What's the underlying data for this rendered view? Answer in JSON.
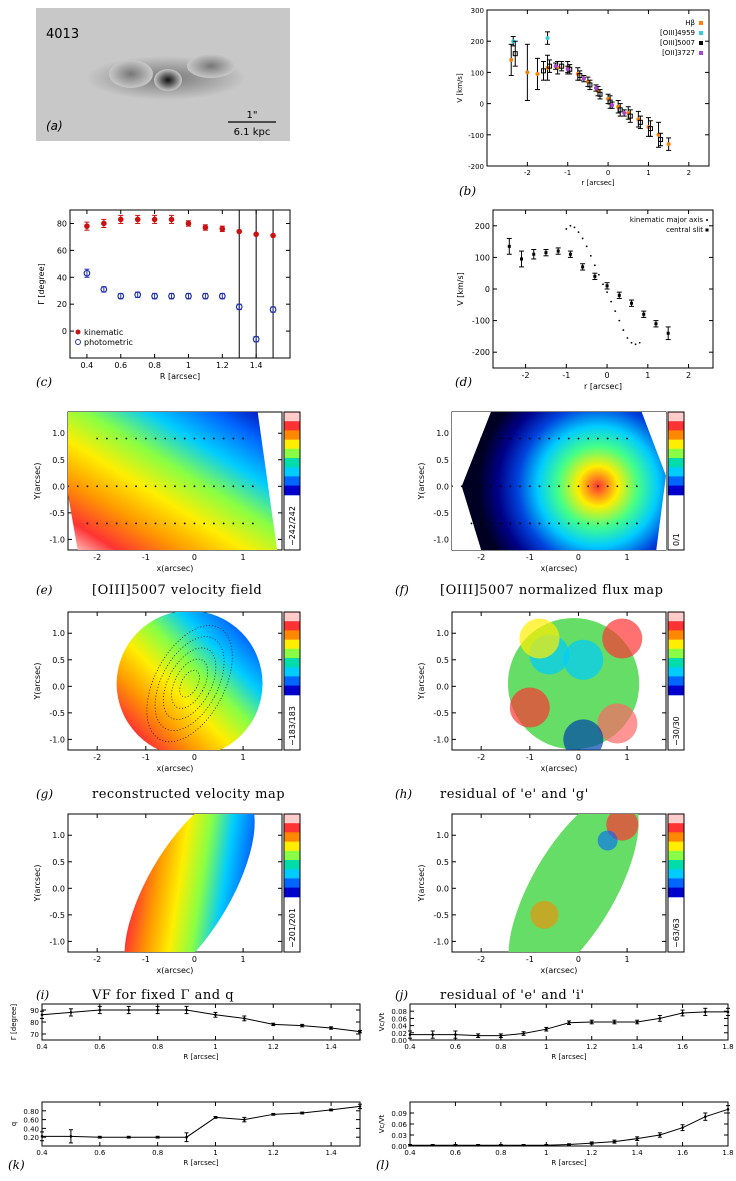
{
  "panel_letters": {
    "a": "(a)",
    "b": "(b)",
    "c": "(c)",
    "d": "(d)",
    "e": "(e)",
    "f": "(f)",
    "g": "(g)",
    "h": "(h)",
    "i": "(i)",
    "j": "(j)",
    "k": "(k)",
    "l": "(l)"
  },
  "panel_titles": {
    "e": "[OIII]5007 velocity field",
    "f": "[OIII]5007 normalized flux map",
    "g": "reconstructed velocity map",
    "h": "residual of 'e' and 'g'",
    "i": "VF for fixed Γ and q",
    "j": "residual of 'e' and 'i'"
  },
  "panel_a": {
    "id_label": "4013",
    "scale_top": "1\"",
    "scale_bottom": "6.1 kpc"
  },
  "map_axes": {
    "xlabel": "x(arcsec)",
    "ylabel": "Y(arcsec)"
  },
  "colorbar_labels": {
    "e": "−242/242",
    "f": "0/1",
    "g": "−183/183",
    "h": "−30/30",
    "i": "−201/201",
    "j": "−63/63"
  },
  "colors": {
    "red_kinematic": "#cc1111",
    "blue_photometric": "#2233aa"
  },
  "chart_data": [
    {
      "panel": "b",
      "type": "scatter",
      "xlabel": "r [arcsec]",
      "ylabel": "V [km/s]",
      "xlim": [
        -3,
        2.5
      ],
      "ylim": [
        -200,
        300
      ],
      "xticks": [
        -2,
        -1,
        0,
        1,
        2
      ],
      "yticks": [
        -200,
        -100,
        0,
        100,
        200,
        300
      ],
      "legend_position": "top-right",
      "series": [
        {
          "name": "Hβ",
          "color": "#ff7f00",
          "x": [
            -2.4,
            -2.0,
            -1.75,
            -1.5,
            -1.25,
            -1.0,
            -0.75,
            -0.5,
            -0.25,
            0.0,
            0.25,
            0.5,
            0.75,
            1.0,
            1.25,
            1.5
          ],
          "y": [
            140,
            100,
            95,
            115,
            115,
            115,
            95,
            70,
            40,
            15,
            -10,
            -30,
            -50,
            -75,
            -100,
            -130
          ],
          "err": [
            50,
            90,
            50,
            40,
            20,
            20,
            20,
            15,
            15,
            15,
            20,
            20,
            25,
            30,
            40,
            20
          ]
        },
        {
          "name": "[OIII]4959",
          "color": "#33ccdd",
          "x": [
            -2.35,
            -1.5
          ],
          "y": [
            200,
            210
          ],
          "err": [
            15,
            20
          ]
        },
        {
          "name": "[OIII]5007",
          "color": "#000000",
          "x": [
            -2.3,
            -1.6,
            -1.45,
            -1.15,
            -0.95,
            -0.7,
            -0.45,
            -0.2,
            0.05,
            0.3,
            0.55,
            0.8,
            1.05,
            1.3
          ],
          "y": [
            160,
            105,
            120,
            120,
            110,
            90,
            60,
            30,
            5,
            -20,
            -40,
            -60,
            -80,
            -115
          ],
          "err": [
            40,
            30,
            20,
            15,
            15,
            15,
            15,
            15,
            20,
            20,
            20,
            20,
            25,
            20
          ]
        },
        {
          "name": "[OII]3727",
          "color": "#aa44cc",
          "x": [
            -1.3,
            -1.0,
            -0.6,
            -0.3,
            0.1,
            0.4
          ],
          "y": [
            120,
            110,
            80,
            50,
            -5,
            -30
          ],
          "err": [
            10,
            10,
            10,
            10,
            10,
            10
          ]
        }
      ]
    },
    {
      "panel": "c",
      "type": "scatter",
      "xlabel": "R [arcsec]",
      "ylabel": "Γ [degree]",
      "xlim": [
        0.3,
        1.6
      ],
      "ylim": [
        -20,
        90
      ],
      "xticks": [
        0.4,
        0.6,
        0.8,
        1.0,
        1.2,
        1.4
      ],
      "yticks": [
        0,
        20,
        40,
        60,
        80
      ],
      "legend_position": "bottom-left",
      "series": [
        {
          "name": "kinematic",
          "color": "#cc1111",
          "x": [
            0.4,
            0.5,
            0.6,
            0.7,
            0.8,
            0.9,
            1.0,
            1.1,
            1.2,
            1.3,
            1.4,
            1.5
          ],
          "y": [
            78,
            80,
            83,
            83,
            83,
            83,
            80,
            77,
            76,
            74,
            72,
            71
          ],
          "err": [
            3,
            3,
            3,
            3,
            3,
            3,
            2,
            2,
            2,
            2,
            2,
            2
          ],
          "big_err": [
            false,
            false,
            false,
            false,
            false,
            false,
            false,
            false,
            false,
            true,
            true,
            true
          ]
        },
        {
          "name": "photometric",
          "color": "#2233aa",
          "x": [
            0.4,
            0.5,
            0.6,
            0.7,
            0.8,
            0.9,
            1.0,
            1.1,
            1.2,
            1.3,
            1.4,
            1.5
          ],
          "y": [
            43,
            31,
            26,
            27,
            26,
            26,
            26,
            26,
            26,
            18,
            -6,
            16
          ],
          "err": [
            3,
            2,
            2,
            2,
            2,
            2,
            2,
            2,
            2,
            2,
            2,
            2
          ]
        }
      ]
    },
    {
      "panel": "d",
      "type": "scatter",
      "xlabel": "r [arcsec]",
      "ylabel": "V [km/s]",
      "xlim": [
        -2.8,
        2.6
      ],
      "ylim": [
        -250,
        250
      ],
      "xticks": [
        -2,
        -1,
        0,
        1,
        2
      ],
      "yticks": [
        -200,
        -100,
        0,
        100,
        200
      ],
      "legend_position": "top-right",
      "series": [
        {
          "name": "kinematic major axis",
          "color": "#000000",
          "x": [
            -1.0,
            -0.9,
            -0.8,
            -0.7,
            -0.6,
            -0.5,
            -0.4,
            -0.3,
            -0.2,
            -0.1,
            0.0,
            0.1,
            0.2,
            0.3,
            0.4,
            0.5,
            0.6,
            0.7,
            0.8
          ],
          "y": [
            190,
            200,
            195,
            180,
            160,
            135,
            105,
            75,
            45,
            15,
            -10,
            -40,
            -70,
            -100,
            -130,
            -155,
            -170,
            -175,
            -170
          ]
        },
        {
          "name": "central slit",
          "color": "#000000",
          "x": [
            -2.4,
            -2.1,
            -1.8,
            -1.5,
            -1.2,
            -0.9,
            -0.6,
            -0.3,
            0.0,
            0.3,
            0.6,
            0.9,
            1.2,
            1.5
          ],
          "y": [
            135,
            95,
            110,
            115,
            120,
            110,
            70,
            40,
            10,
            -20,
            -45,
            -80,
            -110,
            -140
          ],
          "err": [
            25,
            25,
            15,
            10,
            10,
            10,
            10,
            10,
            10,
            10,
            10,
            10,
            10,
            20
          ]
        }
      ]
    },
    {
      "panel": "k1",
      "type": "line",
      "xlabel": "R [arcsec]",
      "ylabel": "Γ [degree]",
      "xlim": [
        0.4,
        1.5
      ],
      "ylim": [
        65,
        95
      ],
      "xticks": [
        0.4,
        0.6,
        0.8,
        1.0,
        1.2,
        1.4
      ],
      "yticks": [
        70,
        80,
        90
      ],
      "x": [
        0.4,
        0.5,
        0.6,
        0.7,
        0.8,
        0.9,
        1.0,
        1.1,
        1.2,
        1.3,
        1.4,
        1.5
      ],
      "y": [
        86,
        88,
        90,
        90,
        90,
        90,
        86,
        83,
        78,
        77,
        75,
        72
      ],
      "err": [
        3,
        3,
        3,
        3,
        3,
        3,
        2,
        2,
        1,
        1,
        1,
        1
      ]
    },
    {
      "panel": "l1",
      "type": "line",
      "xlabel": "R [arcsec]",
      "ylabel": "Vc/Vt",
      "xlim": [
        0.4,
        1.8
      ],
      "ylim": [
        0,
        0.1
      ],
      "xticks": [
        0.4,
        0.6,
        0.8,
        1.0,
        1.2,
        1.4,
        1.6,
        1.8
      ],
      "yticks": [
        0.0,
        0.02,
        0.04,
        0.06,
        0.08
      ],
      "x": [
        0.4,
        0.5,
        0.6,
        0.7,
        0.8,
        0.9,
        1.0,
        1.1,
        1.2,
        1.3,
        1.4,
        1.5,
        1.6,
        1.7,
        1.8
      ],
      "y": [
        0.015,
        0.015,
        0.015,
        0.012,
        0.012,
        0.018,
        0.03,
        0.048,
        0.05,
        0.05,
        0.05,
        0.06,
        0.075,
        0.078,
        0.078
      ],
      "err": [
        0.01,
        0.01,
        0.01,
        0.005,
        0.005,
        0.005,
        0.005,
        0.005,
        0.005,
        0.005,
        0.005,
        0.008,
        0.008,
        0.01,
        0.01
      ]
    },
    {
      "panel": "k2",
      "type": "line",
      "xlabel": "R [arcsec]",
      "ylabel": "q",
      "xlim": [
        0.4,
        1.5
      ],
      "ylim": [
        0,
        1
      ],
      "xticks": [
        0.4,
        0.6,
        0.8,
        1.0,
        1.2,
        1.4
      ],
      "yticks": [
        0.2,
        0.4,
        0.6,
        0.8
      ],
      "x": [
        0.4,
        0.5,
        0.6,
        0.7,
        0.8,
        0.9,
        1.0,
        1.1,
        1.2,
        1.3,
        1.4,
        1.5
      ],
      "y": [
        0.22,
        0.22,
        0.2,
        0.2,
        0.2,
        0.2,
        0.65,
        0.6,
        0.72,
        0.75,
        0.82,
        0.9
      ],
      "err": [
        0.1,
        0.15,
        0.02,
        0.02,
        0.02,
        0.1,
        0.02,
        0.05,
        0.02,
        0.02,
        0.02,
        0.05
      ]
    },
    {
      "panel": "l2",
      "type": "line",
      "xlabel": "R [arcsec]",
      "ylabel": "Vc/Vt",
      "xlim": [
        0.4,
        1.8
      ],
      "ylim": [
        0,
        0.12
      ],
      "xticks": [
        0.4,
        0.6,
        0.8,
        1.0,
        1.2,
        1.4,
        1.6,
        1.8
      ],
      "yticks": [
        0.0,
        0.03,
        0.06,
        0.09
      ],
      "x": [
        0.4,
        0.5,
        0.6,
        0.7,
        0.8,
        0.9,
        1.0,
        1.1,
        1.2,
        1.3,
        1.4,
        1.5,
        1.6,
        1.7,
        1.8
      ],
      "y": [
        0.002,
        0.002,
        0.002,
        0.002,
        0.002,
        0.002,
        0.002,
        0.004,
        0.008,
        0.012,
        0.02,
        0.03,
        0.05,
        0.08,
        0.1
      ],
      "err": [
        0.002,
        0.002,
        0.002,
        0.002,
        0.002,
        0.002,
        0.002,
        0.002,
        0.003,
        0.004,
        0.005,
        0.006,
        0.008,
        0.01,
        0.01
      ]
    },
    {
      "panel": "maps",
      "type": "heatmap",
      "xlim": [
        -2.6,
        1.8
      ],
      "ylim": [
        -1.2,
        1.4
      ],
      "xticks": [
        -2,
        -1,
        0,
        1
      ],
      "yticks": [
        -1.0,
        -0.5,
        0.0,
        0.5,
        1.0
      ]
    }
  ]
}
